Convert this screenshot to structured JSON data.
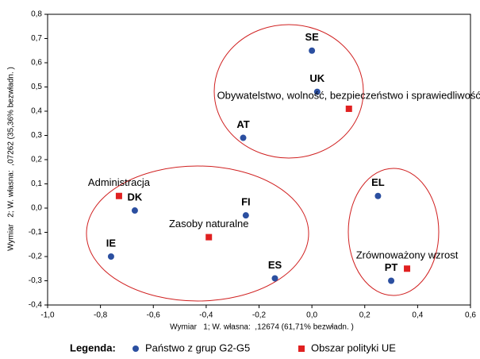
{
  "chart_data": {
    "type": "scatter",
    "xlabel": "Wymiar   1; W. własna:  ,12674 (61,71% bezwładn. )",
    "ylabel": "Wymiar   2; W. własna:  ,07262 (35,36% bezwładn. )",
    "xlim": [
      -1.0,
      0.6
    ],
    "ylim": [
      -0.4,
      0.8
    ],
    "xticks": [
      {
        "value": -1.0,
        "label": "-1,0"
      },
      {
        "value": -0.8,
        "label": "-0,8"
      },
      {
        "value": -0.6,
        "label": "-0,6"
      },
      {
        "value": -0.4,
        "label": "-0,4"
      },
      {
        "value": -0.2,
        "label": "-0,2"
      },
      {
        "value": 0,
        "label": "0,0"
      },
      {
        "value": 0.2,
        "label": "0,2"
      },
      {
        "value": 0.4,
        "label": "0,4"
      },
      {
        "value": 0.6,
        "label": "0,6"
      }
    ],
    "yticks": [
      {
        "value": -0.4,
        "label": "-0,4"
      },
      {
        "value": -0.3,
        "label": "-0,3"
      },
      {
        "value": -0.2,
        "label": "-0,2"
      },
      {
        "value": -0.1,
        "label": "-0,1"
      },
      {
        "value": 0,
        "label": "0,0"
      },
      {
        "value": 0.1,
        "label": "0,1"
      },
      {
        "value": 0.2,
        "label": "0,2"
      },
      {
        "value": 0.3,
        "label": "0,3"
      },
      {
        "value": 0.4,
        "label": "0,4"
      },
      {
        "value": 0.5,
        "label": "0,5"
      },
      {
        "value": 0.6,
        "label": "0,6"
      },
      {
        "value": 0.7,
        "label": "0,7"
      },
      {
        "value": 0.8,
        "label": "0,8"
      }
    ],
    "legend_title": "Legenda:",
    "series": [
      {
        "name": "Państwo z grup G2-G5",
        "color": "#2b4fa0",
        "marker": "circle",
        "labels": [
          "SE",
          "UK",
          "AT",
          "DK",
          "FI",
          "IE",
          "ES",
          "EL",
          "PT"
        ],
        "x": [
          0.0,
          0.02,
          -0.26,
          -0.67,
          -0.25,
          -0.76,
          -0.14,
          0.25,
          0.3
        ],
        "values": [
          0.65,
          0.48,
          0.29,
          -0.01,
          -0.03,
          -0.2,
          -0.29,
          0.05,
          -0.3
        ]
      },
      {
        "name": "Obszar polityki UE",
        "color": "#e02020",
        "marker": "square",
        "labels": [
          "Obywatelstwo, wolność, bezpieczeństwo i sprawiedliwość",
          "Administracja",
          "Zasoby naturalne",
          "Zrównoważony wzrost"
        ],
        "x": [
          0.14,
          -0.73,
          -0.39,
          0.36
        ],
        "values": [
          0.41,
          0.05,
          -0.12,
          -0.25
        ]
      }
    ]
  }
}
